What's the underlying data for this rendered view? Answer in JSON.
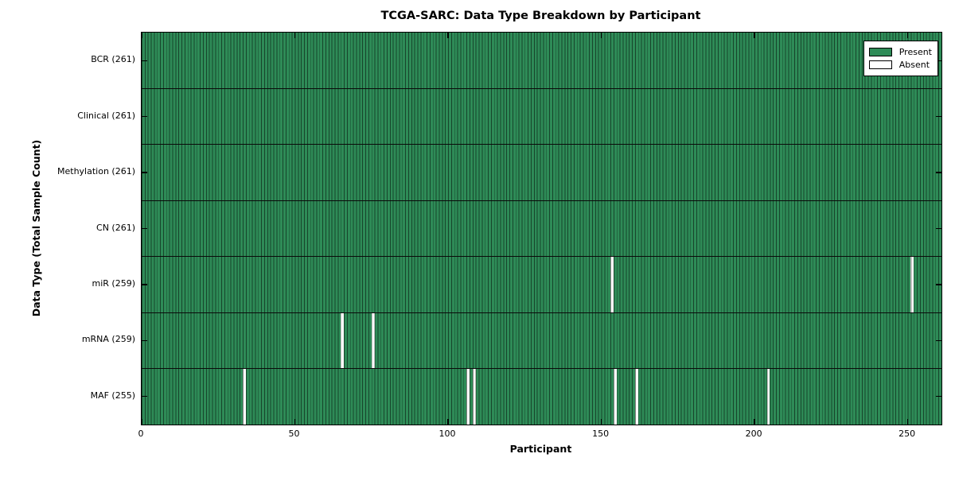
{
  "title": "TCGA-SARC: Data Type Breakdown by Participant",
  "chart_data": {
    "type": "heatmap",
    "title": "TCGA-SARC: Data Type Breakdown by Participant",
    "xlabel": "Participant",
    "ylabel": "Data Type (Total Sample Count)",
    "n_participants": 261,
    "xlim": [
      0,
      261
    ],
    "x_ticks": [
      0,
      50,
      100,
      150,
      200,
      250
    ],
    "grid": false,
    "legend": {
      "position": "upper right",
      "entries": [
        {
          "label": "Present",
          "color": "#2e8b57"
        },
        {
          "label": "Absent",
          "color": "#ffffff"
        }
      ]
    },
    "rows": [
      {
        "label": "BCR (261)",
        "name": "BCR",
        "total": 261,
        "absent_participants": []
      },
      {
        "label": "Clinical (261)",
        "name": "Clinical",
        "total": 261,
        "absent_participants": []
      },
      {
        "label": "Methylation (261)",
        "name": "Methylation",
        "total": 261,
        "absent_participants": []
      },
      {
        "label": "CN (261)",
        "name": "CN",
        "total": 261,
        "absent_participants": []
      },
      {
        "label": "miR (259)",
        "name": "miR",
        "total": 259,
        "absent_participants": [
          153,
          251
        ]
      },
      {
        "label": "mRNA (259)",
        "name": "mRNA",
        "total": 259,
        "absent_participants": [
          65,
          75
        ]
      },
      {
        "label": "MAF (255)",
        "name": "MAF",
        "total": 255,
        "absent_participants": [
          33,
          106,
          108,
          154,
          161,
          204
        ]
      }
    ],
    "colors": {
      "present": "#2e8b57",
      "absent": "#ffffff",
      "bar_edge": "rgba(0,0,0,0.5)",
      "separator": "#0a0a0a",
      "spine": "#000000"
    }
  }
}
